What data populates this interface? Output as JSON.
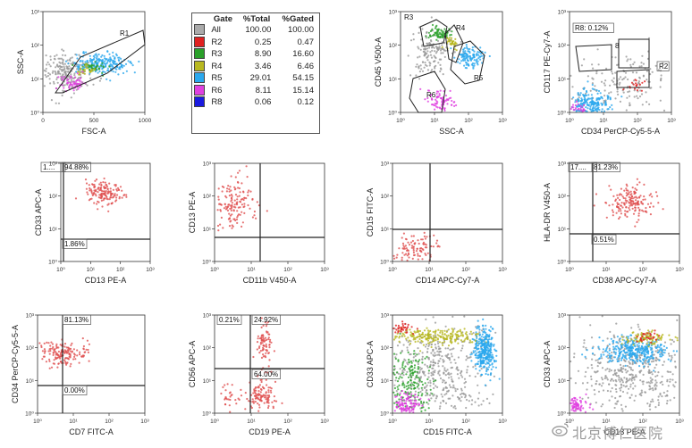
{
  "gate_table": {
    "headers": [
      "Gate",
      "%Total",
      "%Gated"
    ],
    "rows": [
      {
        "color": "#aaaaaa",
        "gate": "All",
        "total": "100.00",
        "gated": "100.00"
      },
      {
        "color": "#e02020",
        "gate": "R2",
        "total": "0.25",
        "gated": "0.47"
      },
      {
        "color": "#2aa02a",
        "gate": "R3",
        "total": "8.90",
        "gated": "16.60"
      },
      {
        "color": "#b8b820",
        "gate": "R4",
        "total": "3.46",
        "gated": "6.46"
      },
      {
        "color": "#2aa8ee",
        "gate": "R5",
        "total": "29.01",
        "gated": "54.15"
      },
      {
        "color": "#e040e0",
        "gate": "R6",
        "total": "8.11",
        "gated": "15.14"
      },
      {
        "color": "#1a1ae0",
        "gate": "R8",
        "total": "0.06",
        "gated": "0.12"
      }
    ]
  },
  "watermark": {
    "text": "北京博仁医院"
  },
  "chart_data": [
    {
      "type": "scatter",
      "id": "p1",
      "xscale": "linear",
      "yscale": "log",
      "xlim": [
        0,
        1000
      ],
      "ylim": [
        1,
        1000
      ],
      "xticks": [
        "0",
        "500",
        "1000"
      ],
      "yticks": [
        "10⁰",
        "10¹",
        "10²",
        "10³"
      ],
      "xlabel": "FSC-A",
      "ylabel": "SSC-A",
      "gates": [
        {
          "label": "R1"
        }
      ],
      "populations": [
        {
          "color": "#999999",
          "cx": 230,
          "cy": 1.2,
          "sx": 120,
          "sy": 0.3,
          "n": 220
        },
        {
          "color": "#2aa8ee",
          "cx": 560,
          "cy": 1.45,
          "sx": 140,
          "sy": 0.15,
          "n": 220
        },
        {
          "color": "#2aa02a",
          "cx": 500,
          "cy": 1.35,
          "sx": 60,
          "sy": 0.08,
          "n": 40
        },
        {
          "color": "#b8b820",
          "cx": 430,
          "cy": 1.25,
          "sx": 50,
          "sy": 0.08,
          "n": 30
        },
        {
          "color": "#e040e0",
          "cx": 280,
          "cy": 0.9,
          "sx": 60,
          "sy": 0.12,
          "n": 60
        }
      ]
    },
    {
      "type": "scatter",
      "id": "p3",
      "xscale": "log",
      "yscale": "log",
      "xlim": [
        0,
        3
      ],
      "ylim": [
        0,
        3
      ],
      "xticks": [
        "10⁰",
        "10¹",
        "10²",
        "10³"
      ],
      "yticks": [
        "10⁰",
        "10¹",
        "10²",
        "10³"
      ],
      "xlabel": "SSC-A",
      "ylabel": "CD45 V500-A",
      "gates": [
        {
          "label": "R3"
        },
        {
          "label": "R4"
        },
        {
          "label": "R5"
        },
        {
          "label": "R6"
        }
      ],
      "populations": [
        {
          "color": "#999999",
          "cx": 0.9,
          "cy": 1.8,
          "sx": 0.3,
          "sy": 0.35,
          "n": 150
        },
        {
          "color": "#2aa02a",
          "cx": 1.15,
          "cy": 2.35,
          "sx": 0.15,
          "sy": 0.1,
          "n": 70
        },
        {
          "color": "#b8b820",
          "cx": 1.5,
          "cy": 2.05,
          "sx": 0.1,
          "sy": 0.1,
          "n": 35
        },
        {
          "color": "#2aa8ee",
          "cx": 2.05,
          "cy": 1.65,
          "sx": 0.2,
          "sy": 0.18,
          "n": 120
        },
        {
          "color": "#e040e0",
          "cx": 1.2,
          "cy": 0.35,
          "sx": 0.22,
          "sy": 0.15,
          "n": 80
        }
      ]
    },
    {
      "type": "scatter",
      "id": "p4",
      "xscale": "log",
      "yscale": "log",
      "xlim": [
        0,
        3
      ],
      "ylim": [
        0,
        3
      ],
      "xticks": [
        "10⁰",
        "10¹",
        "10²",
        "10³"
      ],
      "yticks": [
        "10⁰",
        "10¹",
        "10²",
        "10³"
      ],
      "xlabel": "CD34 PerCP-Cy5-5-A",
      "ylabel": "CD117 PE-Cy7-A",
      "gates": [
        {
          "label": "R8: 0.12%"
        },
        {
          "label": "8"
        },
        {
          "label": "R2"
        }
      ],
      "populations": [
        {
          "color": "#999999",
          "cx": 1.6,
          "cy": 0.8,
          "sx": 0.8,
          "sy": 0.45,
          "n": 170
        },
        {
          "color": "#2aa8ee",
          "cx": 0.6,
          "cy": 0.25,
          "sx": 0.35,
          "sy": 0.2,
          "n": 220
        },
        {
          "color": "#e040e0",
          "cx": 0.2,
          "cy": 0.08,
          "sx": 0.15,
          "sy": 0.08,
          "n": 40
        },
        {
          "color": "#e02020",
          "cx": 2.0,
          "cy": 0.85,
          "sx": 0.15,
          "sy": 0.12,
          "n": 18
        }
      ]
    },
    {
      "type": "scatter",
      "id": "p5",
      "xscale": "log",
      "yscale": "log",
      "xlim": [
        0,
        3
      ],
      "ylim": [
        0,
        3
      ],
      "xticks": [
        "10⁰",
        "10¹",
        "10²",
        "10³"
      ],
      "yticks": [
        "10⁰",
        "10¹",
        "10²",
        "10³"
      ],
      "xlabel": "CD13 PE-A",
      "ylabel": "CD33 APC-A",
      "quadrants": [
        {
          "label": "1...."
        },
        {
          "label": "94.88%"
        },
        {
          "label": "1.86%"
        }
      ],
      "populations": [
        {
          "color": "#e05050",
          "cx": 1.4,
          "cy": 2.1,
          "sx": 0.3,
          "sy": 0.18,
          "n": 150
        }
      ]
    },
    {
      "type": "scatter",
      "id": "p6",
      "xscale": "log",
      "yscale": "log",
      "xlim": [
        0,
        3
      ],
      "ylim": [
        0,
        3
      ],
      "xticks": [
        "10⁰",
        "10¹",
        "10²",
        "10³"
      ],
      "yticks": [
        "10⁰",
        "10¹",
        "10²",
        "10³"
      ],
      "xlabel": "CD11b V450-A",
      "ylabel": "CD13 PE-A",
      "populations": [
        {
          "color": "#e05050",
          "cx": 0.55,
          "cy": 1.75,
          "sx": 0.25,
          "sy": 0.35,
          "n": 140
        }
      ]
    },
    {
      "type": "scatter",
      "id": "p7",
      "xscale": "log",
      "yscale": "log",
      "xlim": [
        0,
        3
      ],
      "ylim": [
        0,
        3
      ],
      "xticks": [
        "10⁰",
        "10¹",
        "10²",
        "10³"
      ],
      "yticks": [
        "10⁰",
        "10¹",
        "10²",
        "10³"
      ],
      "xlabel": "CD14 APC-Cy7-A",
      "ylabel": "CD15 FITC-A",
      "populations": [
        {
          "color": "#e05050",
          "cx": 0.6,
          "cy": 0.35,
          "sx": 0.35,
          "sy": 0.2,
          "n": 110
        }
      ]
    },
    {
      "type": "scatter",
      "id": "p8",
      "xscale": "log",
      "yscale": "log",
      "xlim": [
        0,
        3
      ],
      "ylim": [
        0,
        3
      ],
      "xticks": [
        "10⁰",
        "10¹",
        "10²",
        "10³"
      ],
      "yticks": [
        "10⁰",
        "10¹",
        "10²",
        "10³"
      ],
      "xlabel": "CD38 APC-Cy7-A",
      "ylabel": "HLA-DR V450-A",
      "quadrants": [
        {
          "label": "17...."
        },
        {
          "label": "81.23%"
        },
        {
          "label": "0.51%"
        }
      ],
      "populations": [
        {
          "color": "#e05050",
          "cx": 1.7,
          "cy": 1.8,
          "sx": 0.35,
          "sy": 0.25,
          "n": 170
        }
      ]
    },
    {
      "type": "scatter",
      "id": "p9",
      "xscale": "log",
      "yscale": "log",
      "xlim": [
        0,
        3
      ],
      "ylim": [
        0,
        3
      ],
      "xticks": [
        "10⁰",
        "10¹",
        "10²",
        "10³"
      ],
      "yticks": [
        "10⁰",
        "10¹",
        "10²",
        "10³"
      ],
      "xlabel": "CD7 FITC-A",
      "ylabel": "CD34 PerCP-Cy5-5-A",
      "quadrants": [
        {
          "label": "81.13%"
        },
        {
          "label": "0.00%"
        }
      ],
      "populations": [
        {
          "color": "#e05050",
          "cx": 0.7,
          "cy": 1.85,
          "sx": 0.35,
          "sy": 0.18,
          "n": 160
        }
      ]
    },
    {
      "type": "scatter",
      "id": "p10",
      "xscale": "log",
      "yscale": "log",
      "xlim": [
        0,
        3
      ],
      "ylim": [
        0,
        3
      ],
      "xticks": [
        "10⁰",
        "10¹",
        "10²",
        "10³"
      ],
      "yticks": [
        "10⁰",
        "10¹",
        "10²",
        "10³"
      ],
      "xlabel": "CD19 PE-A",
      "ylabel": "CD56 APC-A",
      "quadrants": [
        {
          "label": "0.21%"
        },
        {
          "label": "24.92%"
        },
        {
          "label": "64.00%"
        }
      ],
      "populations": [
        {
          "color": "#e05050",
          "cx": 1.35,
          "cy": 2.1,
          "sx": 0.12,
          "sy": 0.35,
          "n": 80
        },
        {
          "color": "#e05050",
          "cx": 1.3,
          "cy": 0.55,
          "sx": 0.18,
          "sy": 0.25,
          "n": 110
        },
        {
          "color": "#e05050",
          "cx": 0.4,
          "cy": 0.5,
          "sx": 0.2,
          "sy": 0.2,
          "n": 30
        }
      ]
    },
    {
      "type": "scatter",
      "id": "p11",
      "xscale": "log",
      "yscale": "log",
      "xlim": [
        0,
        3
      ],
      "ylim": [
        0,
        3
      ],
      "xticks": [
        "10⁰",
        "10¹",
        "10²",
        "10³"
      ],
      "yticks": [
        "10⁰",
        "10¹",
        "10²",
        "10³"
      ],
      "xlabel": "CD15 FITC-A",
      "ylabel": "CD33 APC-A",
      "populations": [
        {
          "color": "#999999",
          "cx": 1.3,
          "cy": 1.3,
          "sx": 0.75,
          "sy": 0.7,
          "n": 450
        },
        {
          "color": "#2aa02a",
          "cx": 0.45,
          "cy": 0.8,
          "sx": 0.25,
          "sy": 0.6,
          "n": 200
        },
        {
          "color": "#b8b820",
          "cx": 1.2,
          "cy": 2.35,
          "sx": 0.6,
          "sy": 0.12,
          "n": 220
        },
        {
          "color": "#2aa8ee",
          "cx": 2.5,
          "cy": 1.9,
          "sx": 0.14,
          "sy": 0.35,
          "n": 320
        },
        {
          "color": "#e040e0",
          "cx": 0.35,
          "cy": 0.25,
          "sx": 0.2,
          "sy": 0.18,
          "n": 120
        },
        {
          "color": "#e02020",
          "cx": 0.2,
          "cy": 2.6,
          "sx": 0.18,
          "sy": 0.08,
          "n": 40
        }
      ]
    },
    {
      "type": "scatter",
      "id": "p12",
      "xscale": "log",
      "yscale": "log",
      "xlim": [
        0,
        3
      ],
      "ylim": [
        0,
        3
      ],
      "xticks": [
        "10⁰",
        "10¹",
        "10²",
        "10³"
      ],
      "yticks": [
        "10⁰",
        "10¹",
        "10²",
        "10³"
      ],
      "xlabel": "CD13 PE-A",
      "ylabel": "CD33 APC-A",
      "populations": [
        {
          "color": "#999999",
          "cx": 1.7,
          "cy": 1.2,
          "sx": 0.75,
          "sy": 0.65,
          "n": 450
        },
        {
          "color": "#2aa8ee",
          "cx": 1.7,
          "cy": 1.9,
          "sx": 0.45,
          "sy": 0.2,
          "n": 330
        },
        {
          "color": "#b8b820",
          "cx": 2.1,
          "cy": 2.3,
          "sx": 0.3,
          "sy": 0.1,
          "n": 90
        },
        {
          "color": "#e040e0",
          "cx": 0.2,
          "cy": 0.2,
          "sx": 0.15,
          "sy": 0.15,
          "n": 90
        },
        {
          "color": "#e02020",
          "cx": 2.1,
          "cy": 2.35,
          "sx": 0.2,
          "sy": 0.1,
          "n": 25
        }
      ]
    }
  ]
}
